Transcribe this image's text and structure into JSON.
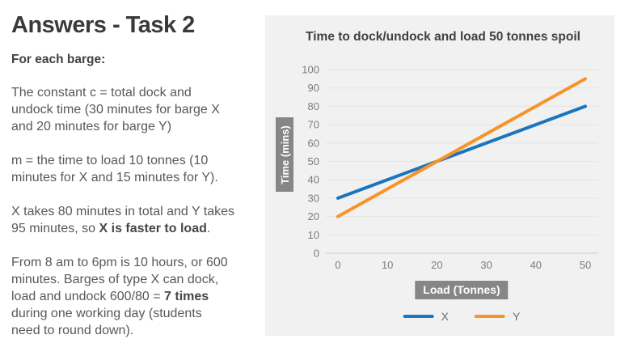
{
  "left": {
    "title": "Answers - Task 2",
    "subheading": "For each barge:",
    "p1": "The constant c = total dock and\nundock time (30 minutes for barge X\nand 20 minutes for barge Y)",
    "p2": "m = the time to load 10 tonnes (10\nminutes for X and 15 minutes for Y).",
    "p3_pre": "X takes 80 minutes in total and Y takes\n95 minutes, so ",
    "p3_bold": "X is faster to load",
    "p3_post": ".",
    "p4_pre": "From 8 am to 6pm is 10 hours, or 600\nminutes. Barges of type X can dock,\nload and undock 600/80 = ",
    "p4_bold": "7 times",
    "p4_post": "\nduring one working day (students\nneed to round down)."
  },
  "chart_data": {
    "type": "line",
    "title": "Time to dock/undock and load 50 tonnes spoil",
    "xlabel": "Load (Tonnes)",
    "ylabel": "Time (mins)",
    "x": [
      0,
      50
    ],
    "series": [
      {
        "name": "X",
        "color": "#1b75bc",
        "values": [
          30,
          80
        ]
      },
      {
        "name": "Y",
        "color": "#f79329",
        "values": [
          20,
          95
        ]
      }
    ],
    "xlim": [
      0,
      50
    ],
    "ylim": [
      0,
      100
    ],
    "x_ticks": [
      0,
      10,
      20,
      30,
      40,
      50
    ],
    "y_ticks": [
      0,
      10,
      20,
      30,
      40,
      50,
      60,
      70,
      80,
      90,
      100
    ],
    "grid": "horizontal",
    "legend_position": "bottom"
  },
  "colors": {
    "panel_background": "#f1f1f2",
    "gridline": "#e7e7e7",
    "zero_line": "#d2d2d2",
    "axis_label_box": "#868686",
    "tick_label": "#7d7d7d",
    "body_text": "#58585a",
    "heading_text": "#3a3a3a",
    "series_x_blue": "#1b75bc",
    "series_y_orange": "#f79329"
  }
}
